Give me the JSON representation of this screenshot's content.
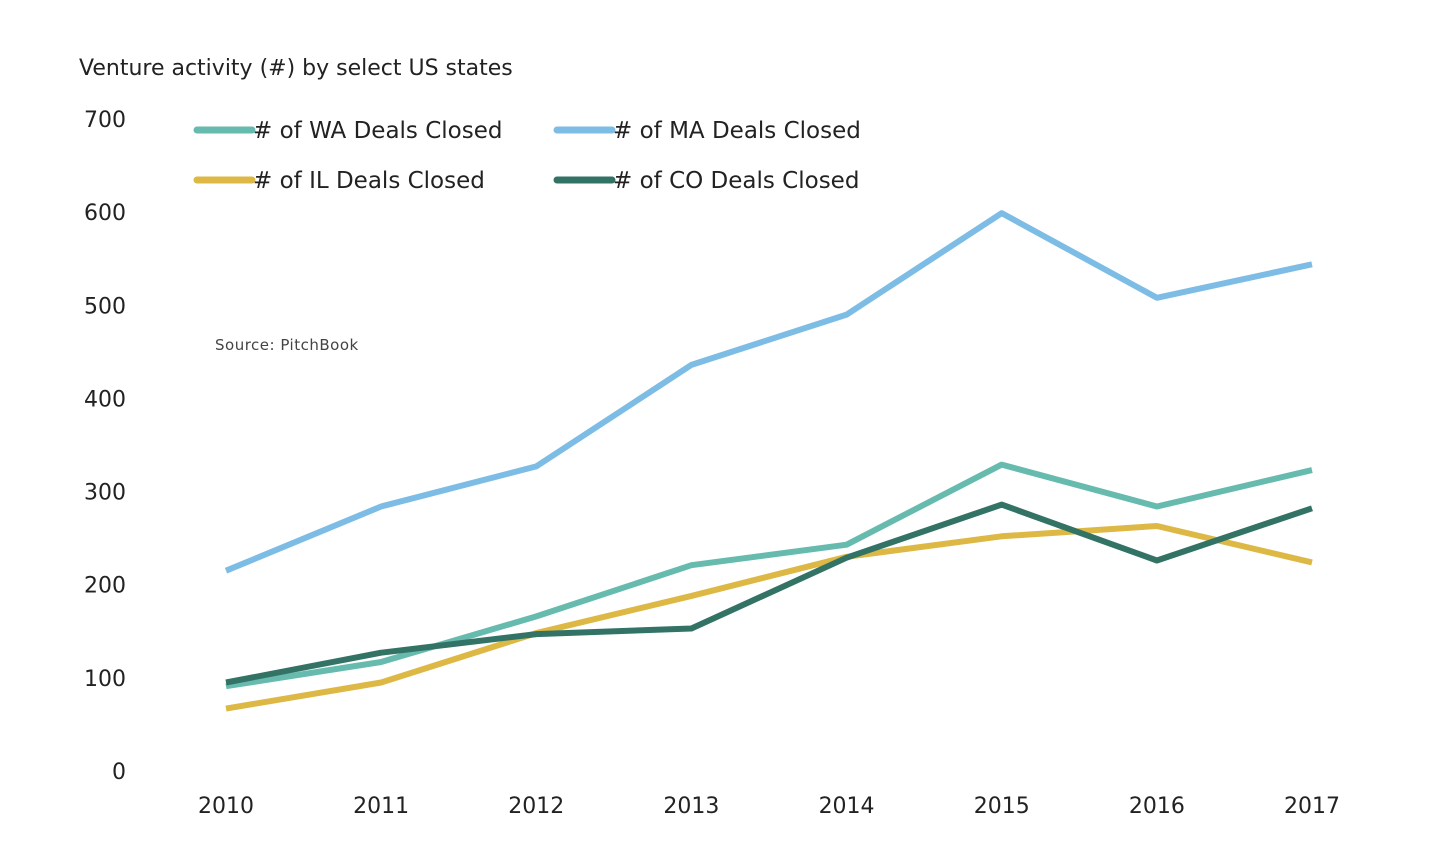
{
  "chart_data": {
    "type": "line",
    "title": "Venture activity (#) by select US states",
    "source": "Source: PitchBook",
    "xlabel": "",
    "ylabel": "",
    "ylim": [
      0,
      700
    ],
    "yticks": [
      0,
      100,
      200,
      300,
      400,
      500,
      600,
      700
    ],
    "grid": false,
    "legend_position": "top",
    "categories": [
      "2010",
      "2011",
      "2012",
      "2013",
      "2014",
      "2015",
      "2016",
      "2017"
    ],
    "series": [
      {
        "key": "wa",
        "name": "# of WA Deals Closed",
        "color": "#66BBAE",
        "values": [
          91,
          117,
          166,
          221,
          243,
          329,
          284,
          323
        ]
      },
      {
        "key": "ma",
        "name": "# of MA Deals Closed",
        "color": "#7DBDE5",
        "values": [
          215,
          284,
          327,
          436,
          490,
          599,
          508,
          544
        ]
      },
      {
        "key": "il",
        "name": "# of IL Deals Closed",
        "color": "#DDB845",
        "values": [
          67,
          95,
          148,
          188,
          230,
          252,
          263,
          224
        ]
      },
      {
        "key": "co",
        "name": "# of CO Deals Closed",
        "color": "#337366",
        "values": [
          95,
          127,
          147,
          153,
          229,
          286,
          226,
          282
        ]
      }
    ]
  }
}
